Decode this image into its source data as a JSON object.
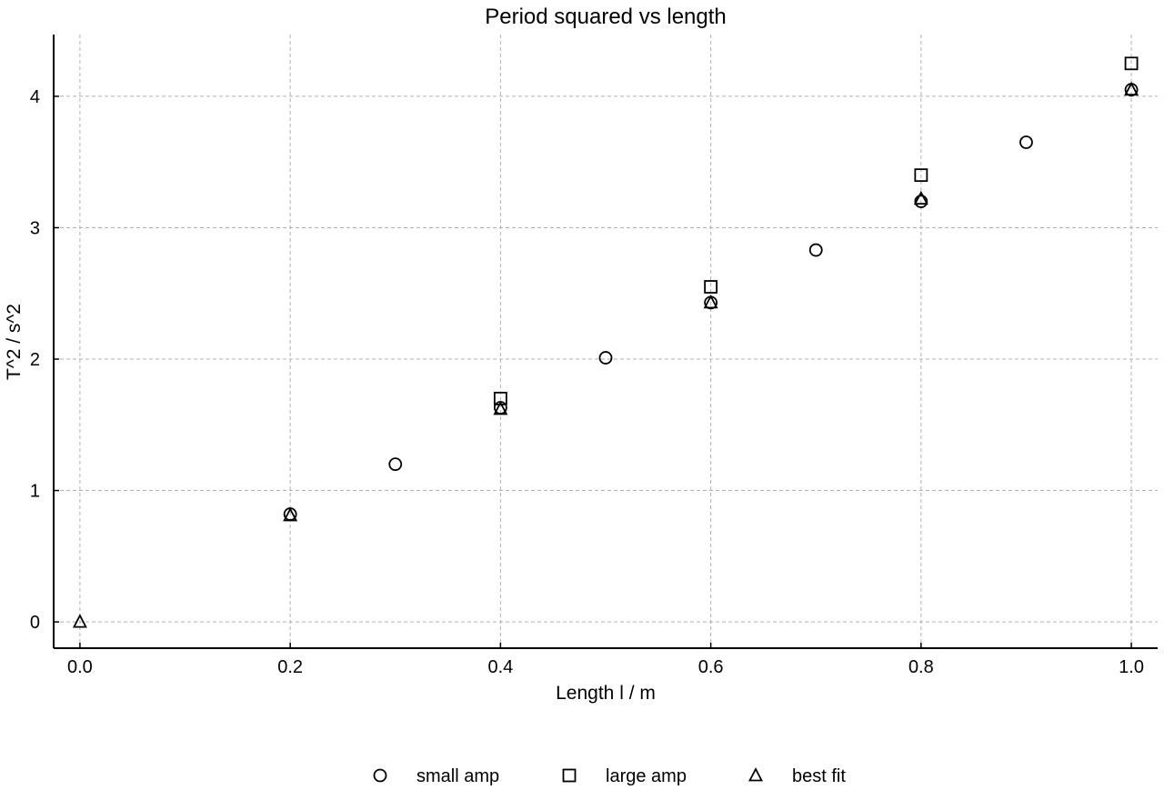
{
  "chart_data": {
    "type": "scatter",
    "title": "Period squared vs length",
    "xlabel": "Length l / m",
    "ylabel": "T^2 / s^2",
    "xlim": [
      -0.025,
      1.025
    ],
    "ylim": [
      -0.2,
      4.47
    ],
    "xticks": [
      0.0,
      0.2,
      0.4,
      0.6,
      0.8,
      1.0
    ],
    "xtick_labels": [
      "0.0",
      "0.2",
      "0.4",
      "0.6",
      "0.8",
      "1.0"
    ],
    "yticks": [
      0,
      1,
      2,
      3,
      4
    ],
    "ytick_labels": [
      "0",
      "1",
      "2",
      "3",
      "4"
    ],
    "grid": true,
    "legend_position": "bottom-center",
    "series": [
      {
        "name": "small amp",
        "marker": "circle",
        "x": [
          0.2,
          0.3,
          0.4,
          0.5,
          0.6,
          0.7,
          0.8,
          0.9,
          1.0
        ],
        "y": [
          0.82,
          1.2,
          1.63,
          2.01,
          2.43,
          2.83,
          3.2,
          3.65,
          4.05
        ]
      },
      {
        "name": "large amp",
        "marker": "square",
        "x": [
          0.4,
          0.6,
          0.8,
          1.0
        ],
        "y": [
          1.7,
          2.55,
          3.4,
          4.25
        ]
      },
      {
        "name": "best fit",
        "marker": "triangle",
        "x": [
          0.0,
          0.2,
          0.4,
          0.6,
          0.8,
          1.0
        ],
        "y": [
          0.0,
          0.81,
          1.62,
          2.43,
          3.22,
          4.05
        ]
      }
    ]
  }
}
